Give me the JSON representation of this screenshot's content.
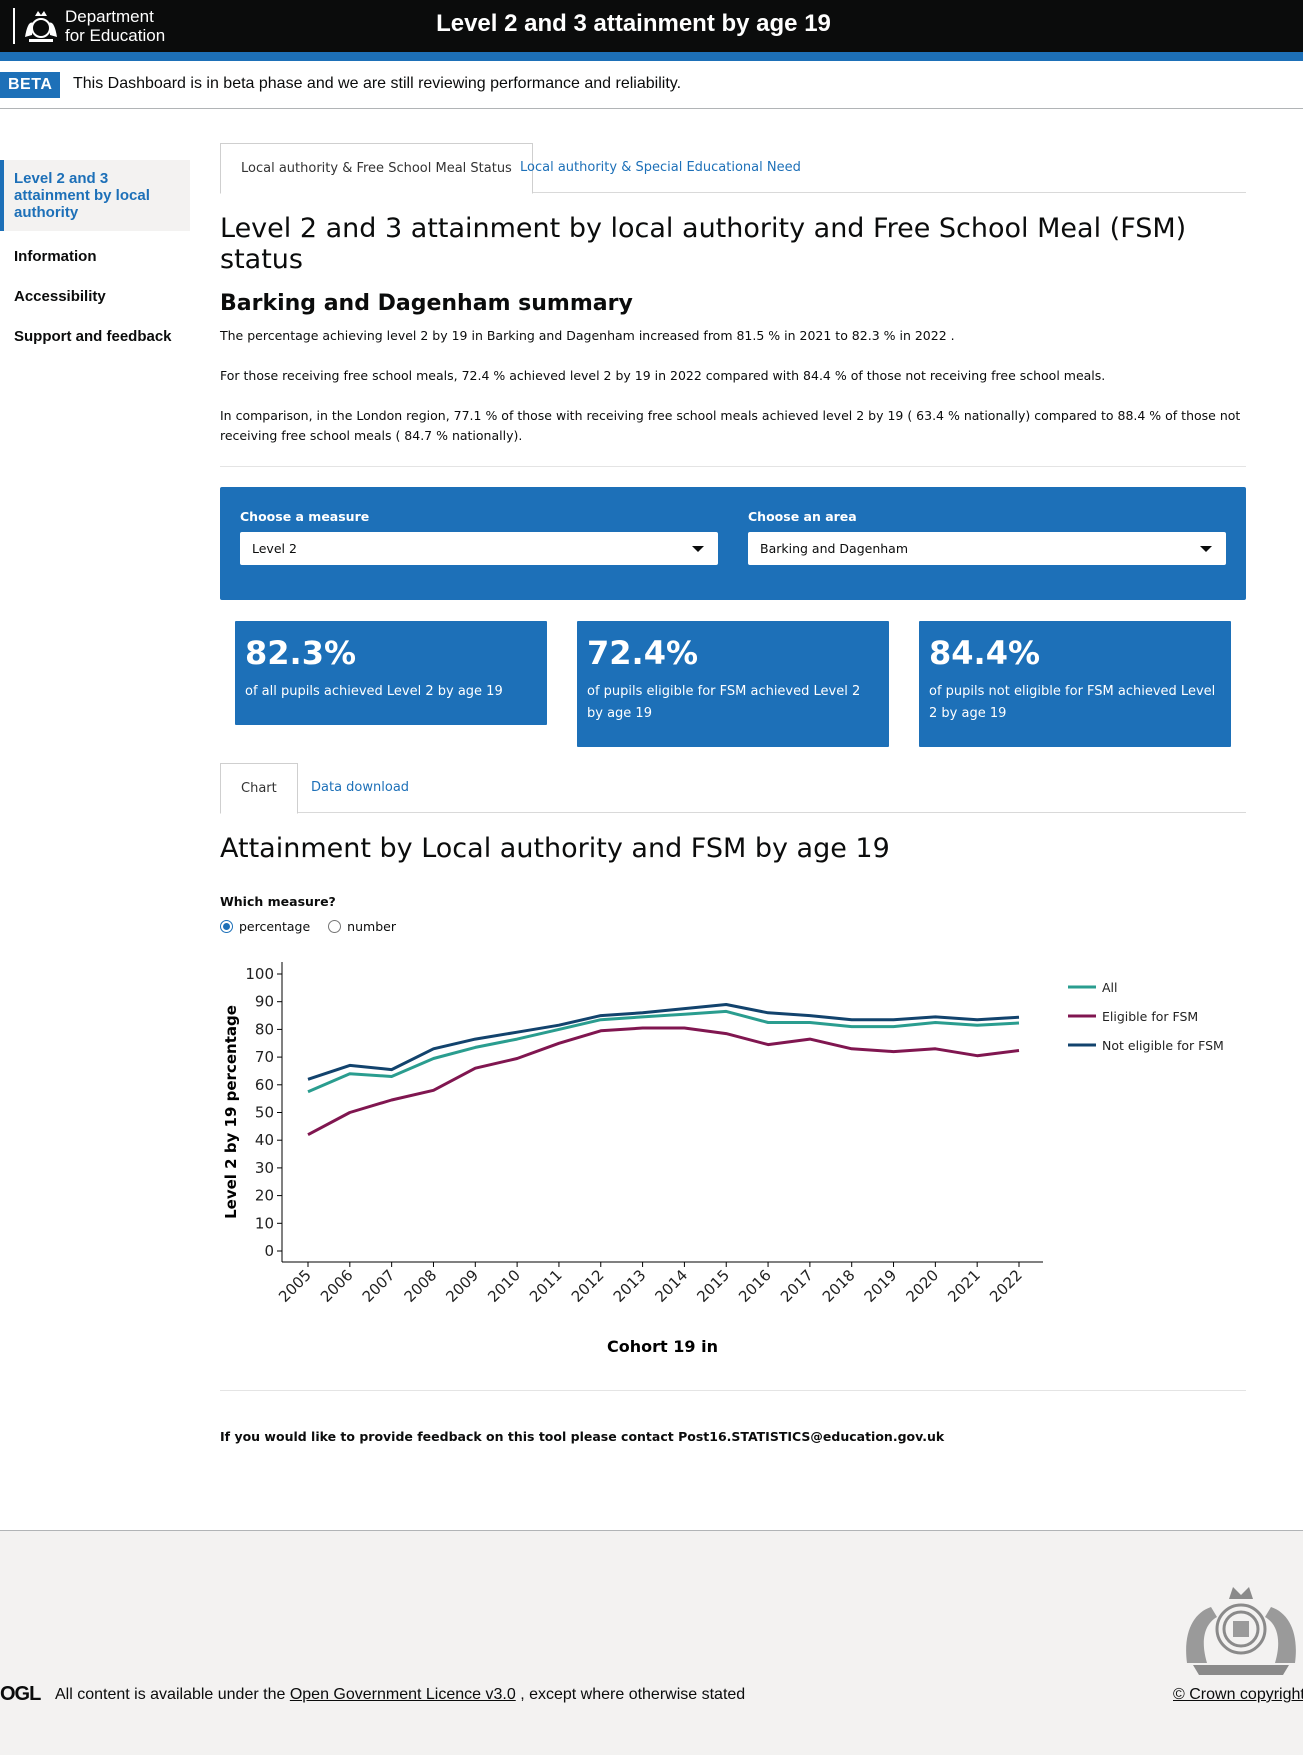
{
  "header": {
    "logo_line1": "Department",
    "logo_line2": "for Education",
    "title": "Level 2 and 3 attainment by age 19"
  },
  "beta": {
    "tag": "BETA",
    "text": "This Dashboard is in beta phase and we are still reviewing performance and reliability."
  },
  "sidebar": {
    "items": [
      {
        "label": "Level 2 and 3 attainment by local authority"
      },
      {
        "label": "Information"
      },
      {
        "label": "Accessibility"
      },
      {
        "label": "Support and feedback"
      }
    ]
  },
  "main": {
    "tabs": [
      {
        "label": "Local authority & Free School Meal Status"
      },
      {
        "label": "Local authority & Special Educational Need"
      }
    ],
    "heading": "Level 2 and 3 attainment by local authority and Free School Meal (FSM) status",
    "area_heading": "Barking and Dagenham summary",
    "summary": [
      "The percentage achieving level 2 by 19 in Barking and Dagenham increased from 81.5 % in 2021 to 82.3 % in 2022 .",
      "For those receiving free school meals, 72.4 % achieved level 2 by 19 in 2022 compared with 84.4 % of those not receiving free school meals.",
      "In comparison, in the London region, 77.1 % of those with receiving free school meals achieved level 2 by 19 ( 63.4 % nationally) compared to 88.4 % of those not receiving free school meals ( 84.7 % nationally)."
    ],
    "filters": {
      "measure_label": "Choose a measure",
      "measure_value": "Level 2",
      "area_label": "Choose an area",
      "area_value": "Barking and Dagenham"
    },
    "kpis": [
      {
        "value": "82.3%",
        "text": "of all pupils achieved Level 2 by age 19"
      },
      {
        "value": "72.4%",
        "text": "of pupils eligible for FSM achieved Level 2 by age 19"
      },
      {
        "value": "84.4%",
        "text": "of pupils not eligible for FSM achieved Level 2 by age 19"
      }
    ],
    "subtabs": [
      {
        "label": "Chart"
      },
      {
        "label": "Data download"
      }
    ],
    "chart_heading": "Attainment by Local authority and FSM by age 19",
    "radio_label": "Which measure?",
    "radios": [
      {
        "label": "percentage",
        "selected": true
      },
      {
        "label": "number",
        "selected": false
      }
    ],
    "feedback": "If you would like to provide feedback on this tool please contact Post16.STATISTICS@education.gov.uk"
  },
  "chart_data": {
    "type": "line",
    "xlabel": "Cohort 19 in",
    "ylabel": "Level 2 by 19 percentage",
    "ylim": [
      0,
      100
    ],
    "yticks": [
      0,
      10,
      20,
      30,
      40,
      50,
      60,
      70,
      80,
      90,
      100
    ],
    "x": [
      "2005",
      "2006",
      "2007",
      "2008",
      "2009",
      "2010",
      "2011",
      "2012",
      "2013",
      "2014",
      "2015",
      "2016",
      "2017",
      "2018",
      "2019",
      "2020",
      "2021",
      "2022"
    ],
    "legend_position": "right",
    "grid": false,
    "series": [
      {
        "name": "All",
        "color": "#2a9d8f",
        "values": [
          57.5,
          64.0,
          63.0,
          69.5,
          73.5,
          76.5,
          80.0,
          83.5,
          84.5,
          85.5,
          86.5,
          82.5,
          82.5,
          81.0,
          81.0,
          82.5,
          81.5,
          82.3
        ]
      },
      {
        "name": "Eligible for FSM",
        "color": "#801650",
        "values": [
          42.0,
          50.0,
          54.5,
          58.0,
          66.0,
          69.5,
          75.0,
          79.5,
          80.5,
          80.5,
          78.5,
          74.5,
          76.5,
          73.0,
          72.0,
          73.0,
          70.5,
          72.4
        ]
      },
      {
        "name": "Not eligible for FSM",
        "color": "#12436d",
        "values": [
          62.0,
          67.0,
          65.5,
          73.0,
          76.5,
          79.0,
          81.5,
          85.0,
          86.0,
          87.5,
          89.0,
          86.0,
          85.0,
          83.5,
          83.5,
          84.5,
          83.5,
          84.4
        ]
      }
    ]
  },
  "footer": {
    "ogl": "OGL",
    "licence_pre": "All content is available under the",
    "licence_link": "Open Government Licence v3.0",
    "licence_post": ", except where otherwise stated",
    "copyright": "© Crown copyright"
  }
}
